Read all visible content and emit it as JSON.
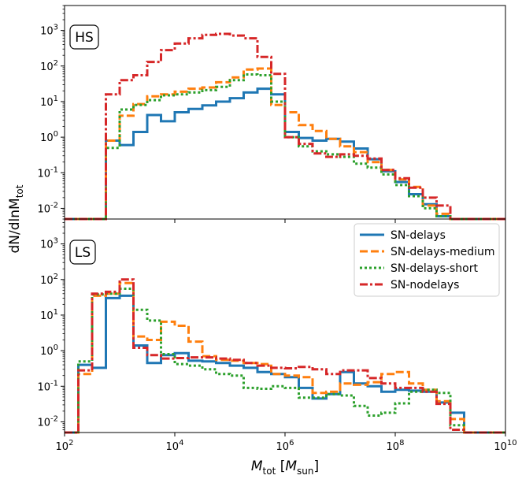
{
  "chart_data": {
    "type": "histogram-step",
    "scale": "log-log",
    "xlabel": "M_tot [M_sun]",
    "ylabel": "dN/dlnM_tot",
    "x_ticks": [
      {
        "exp": "2",
        "value": 100
      },
      {
        "exp": "4",
        "value": 10000
      },
      {
        "exp": "6",
        "value": 1000000
      },
      {
        "exp": "8",
        "value": 100000000
      },
      {
        "exp": "10",
        "value": 10000000000
      }
    ],
    "y_ticks": [
      {
        "exp": "-2",
        "value": 0.01
      },
      {
        "exp": "-1",
        "value": 0.1
      },
      {
        "exp": "0",
        "value": 1
      },
      {
        "exp": "1",
        "value": 10
      },
      {
        "exp": "2",
        "value": 100
      },
      {
        "exp": "3",
        "value": 1000
      }
    ],
    "xlim_log10": [
      2,
      10
    ],
    "ylim_log10": [
      -2.3,
      3.7
    ],
    "bin_edges_log10": [
      2.0,
      2.25,
      2.5,
      2.75,
      3.0,
      3.25,
      3.5,
      3.75,
      4.0,
      4.25,
      4.5,
      4.75,
      5.0,
      5.25,
      5.5,
      5.75,
      6.0,
      6.25,
      6.5,
      6.75,
      7.0,
      7.25,
      7.5,
      7.75,
      8.0,
      8.25,
      8.5,
      8.75,
      9.0,
      9.25,
      9.5,
      9.75,
      10.0
    ],
    "legend": {
      "placement": "upper-right of bottom panel",
      "entries": [
        "SN-delays",
        "SN-delays-medium",
        "SN-delays-short",
        "SN-nodelays"
      ]
    },
    "panels": [
      {
        "label": "HS",
        "series": [
          {
            "name": "SN-delays",
            "color": "#1f77b4",
            "dash": "solid",
            "values": [
              0,
              0,
              0,
              0.8,
              0.6,
              1.4,
              4.2,
              2.8,
              5.0,
              6.2,
              7.8,
              10.0,
              12.5,
              18.0,
              23.0,
              16.0,
              1.4,
              0.95,
              0.8,
              0.9,
              0.75,
              0.48,
              0.24,
              0.11,
              0.055,
              0.025,
              0.013,
              0.006,
              0,
              0,
              0,
              0
            ]
          },
          {
            "name": "SN-delays-medium",
            "color": "#ff7f0e",
            "dash": "dashed",
            "values": [
              0,
              0,
              0,
              0.8,
              4.0,
              8.5,
              14.0,
              16.0,
              19.0,
              23.0,
              25.0,
              35.0,
              48.0,
              80.0,
              85.0,
              8.0,
              5.0,
              2.2,
              1.5,
              0.9,
              0.55,
              0.38,
              0.2,
              0.12,
              0.065,
              0.04,
              0.012,
              0.007,
              0,
              0,
              0,
              0
            ]
          },
          {
            "name": "SN-delays-short",
            "color": "#2ca02c",
            "dash": "dotted",
            "values": [
              0,
              0,
              0,
              0.5,
              6.0,
              8.0,
              11.0,
              15.0,
              16.0,
              18.0,
              21.0,
              26.0,
              40.0,
              58.0,
              55.0,
              10.0,
              1.0,
              0.55,
              0.4,
              0.33,
              0.28,
              0.18,
              0.14,
              0.09,
              0.045,
              0.022,
              0.01,
              0.006,
              0,
              0,
              0,
              0
            ]
          },
          {
            "name": "SN-nodelays",
            "color": "#d62728",
            "dash": "dashdot",
            "values": [
              0,
              0,
              0,
              16.0,
              40.0,
              55.0,
              130.0,
              280.0,
              430.0,
              600.0,
              750.0,
              800.0,
              720.0,
              600.0,
              180.0,
              60.0,
              1.0,
              0.65,
              0.35,
              0.28,
              0.33,
              0.3,
              0.25,
              0.12,
              0.07,
              0.038,
              0.02,
              0.012,
              0,
              0,
              0,
              0
            ]
          }
        ]
      },
      {
        "label": "LS",
        "series": [
          {
            "name": "SN-delays",
            "color": "#1f77b4",
            "dash": "solid",
            "values": [
              0,
              0.4,
              0.33,
              30.0,
              35.0,
              1.4,
              0.45,
              0.75,
              0.85,
              0.52,
              0.5,
              0.45,
              0.38,
              0.33,
              0.25,
              0.22,
              0.18,
              0.09,
              0.045,
              0.06,
              0.25,
              0.12,
              0.1,
              0.07,
              0.08,
              0.075,
              0.07,
              0.035,
              0.018,
              0,
              0,
              0
            ]
          },
          {
            "name": "SN-delays-medium",
            "color": "#ff7f0e",
            "dash": "dashed",
            "values": [
              0,
              0.22,
              35.0,
              40.0,
              80.0,
              2.5,
              2.0,
              6.5,
              5.0,
              1.8,
              0.7,
              0.55,
              0.52,
              0.45,
              0.42,
              0.22,
              0.2,
              0.18,
              0.065,
              0.07,
              0.12,
              0.11,
              0.13,
              0.22,
              0.25,
              0.12,
              0.08,
              0.038,
              0.012,
              0,
              0,
              0
            ]
          },
          {
            "name": "SN-delays-short",
            "color": "#2ca02c",
            "dash": "dotted",
            "values": [
              0,
              0.5,
              38.0,
              40.0,
              55.0,
              14.0,
              7.0,
              0.8,
              0.42,
              0.38,
              0.3,
              0.22,
              0.2,
              0.09,
              0.085,
              0.1,
              0.09,
              0.048,
              0.048,
              0.06,
              0.055,
              0.028,
              0.015,
              0.018,
              0.033,
              0.07,
              0.08,
              0.065,
              0.008,
              0,
              0,
              0
            ]
          },
          {
            "name": "SN-nodelays",
            "color": "#d62728",
            "dash": "dashdot",
            "values": [
              0,
              0.28,
              40.0,
              45.0,
              100.0,
              1.2,
              0.75,
              0.6,
              0.62,
              0.65,
              0.65,
              0.6,
              0.55,
              0.45,
              0.38,
              0.33,
              0.32,
              0.35,
              0.3,
              0.22,
              0.28,
              0.28,
              0.17,
              0.12,
              0.09,
              0.09,
              0.07,
              0.032,
              0.006,
              0,
              0,
              0
            ]
          }
        ]
      }
    ]
  }
}
